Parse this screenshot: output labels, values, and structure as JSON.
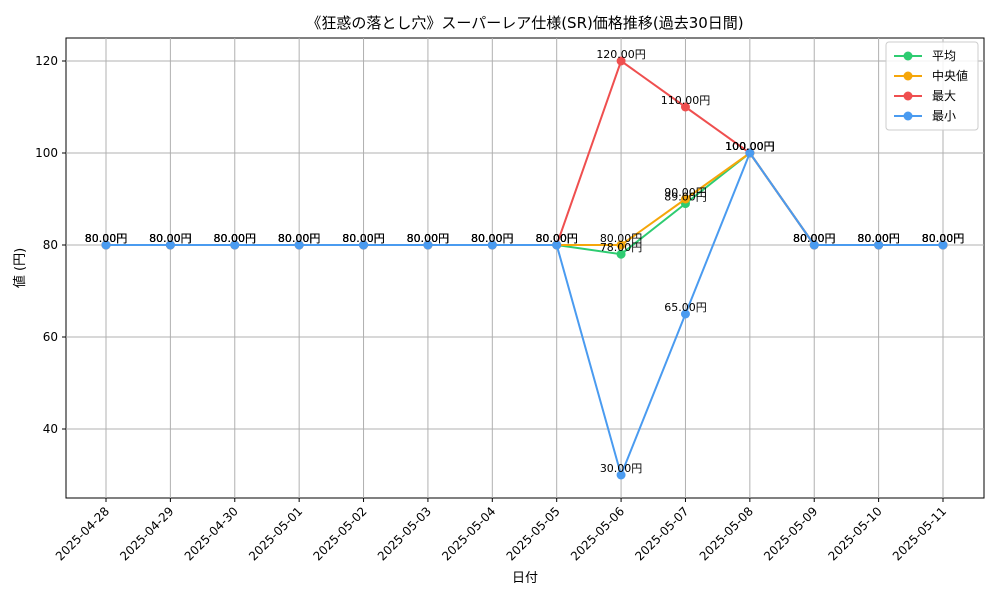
{
  "chart_data": {
    "type": "line",
    "title": "《狂惑の落とし穴》スーパーレア仕様(SR)価格推移(過去30日間)",
    "xlabel": "日付",
    "ylabel": "値 (円)",
    "categories": [
      "2025-04-28",
      "2025-04-29",
      "2025-04-30",
      "2025-05-01",
      "2025-05-02",
      "2025-05-03",
      "2025-05-04",
      "2025-05-05",
      "2025-05-06",
      "2025-05-07",
      "2025-05-08",
      "2025-05-09",
      "2025-05-10",
      "2025-05-11"
    ],
    "ylim": [
      25,
      125
    ],
    "yticks": [
      40,
      60,
      80,
      100,
      120
    ],
    "grid": true,
    "legend_position": "top-right",
    "value_suffix": "円",
    "series": [
      {
        "name": "平均",
        "color": "#2ecc71",
        "values": [
          80,
          80,
          80,
          80,
          80,
          80,
          80,
          80,
          78,
          89,
          100,
          80,
          80,
          80
        ]
      },
      {
        "name": "中央値",
        "color": "#f5a60a",
        "values": [
          80,
          80,
          80,
          80,
          80,
          80,
          80,
          80,
          80,
          90,
          100,
          80,
          80,
          80
        ]
      },
      {
        "name": "最大",
        "color": "#ef4f4f",
        "values": [
          80,
          80,
          80,
          80,
          80,
          80,
          80,
          80,
          120,
          110,
          100,
          80,
          80,
          80
        ]
      },
      {
        "name": "最小",
        "color": "#4a9bf0",
        "values": [
          80,
          80,
          80,
          80,
          80,
          80,
          80,
          80,
          30,
          65,
          100,
          80,
          80,
          80
        ]
      }
    ]
  }
}
